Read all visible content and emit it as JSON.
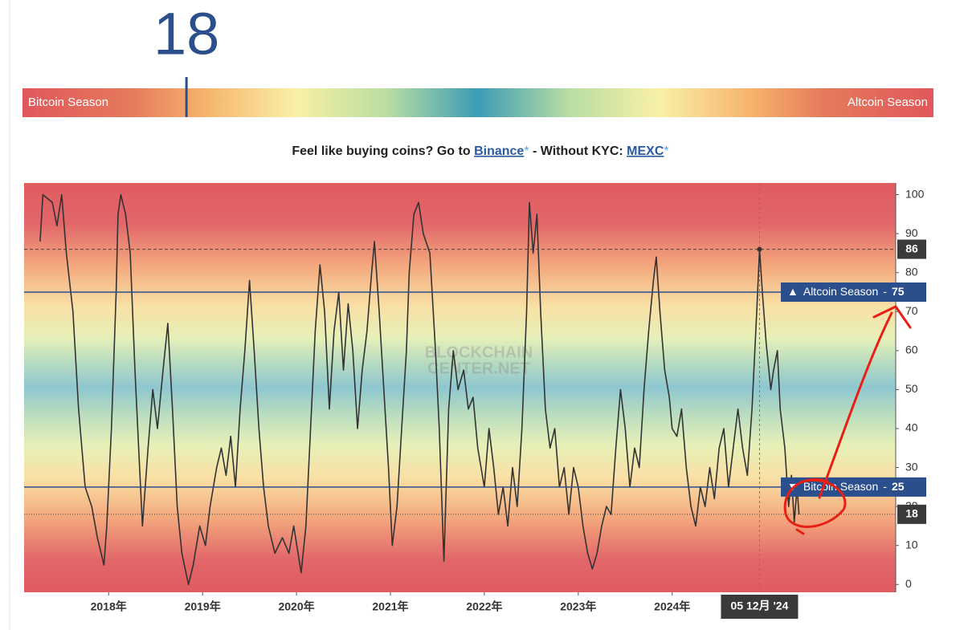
{
  "index": {
    "value": 18,
    "range": [
      0,
      100
    ],
    "left_label": "Bitcoin Season",
    "right_label": "Altcoin Season"
  },
  "promo": {
    "text": "Feel like buying coins? Go to ",
    "link1": "Binance",
    "star1": "*",
    "mid": " - Without KYC: ",
    "link2": "MEXC",
    "star2": "*"
  },
  "chart_data": {
    "type": "line",
    "watermark": [
      "BLOCKCHAIN",
      "CENTER.NET"
    ],
    "color": "#333333",
    "x": [
      2017.27,
      2017.3,
      2017.4,
      2017.45,
      2017.5,
      2017.55,
      2017.62,
      2017.68,
      2017.75,
      2017.82,
      2017.88,
      2017.95,
      2017.98,
      2018.03,
      2018.08,
      2018.1,
      2018.13,
      2018.18,
      2018.23,
      2018.28,
      2018.32,
      2018.36,
      2018.42,
      2018.47,
      2018.52,
      2018.58,
      2018.63,
      2018.68,
      2018.73,
      2018.78,
      2018.85,
      2018.9,
      2018.97,
      2019.03,
      2019.08,
      2019.15,
      2019.2,
      2019.25,
      2019.3,
      2019.35,
      2019.4,
      2019.45,
      2019.5,
      2019.55,
      2019.6,
      2019.65,
      2019.7,
      2019.77,
      2019.85,
      2019.92,
      2019.97,
      2020.05,
      2020.1,
      2020.15,
      2020.2,
      2020.25,
      2020.3,
      2020.35,
      2020.4,
      2020.45,
      2020.5,
      2020.55,
      2020.6,
      2020.65,
      2020.7,
      2020.75,
      2020.8,
      2020.83,
      2020.88,
      2020.93,
      2020.98,
      2021.02,
      2021.07,
      2021.12,
      2021.17,
      2021.2,
      2021.25,
      2021.3,
      2021.35,
      2021.42,
      2021.48,
      2021.52,
      2021.57,
      2021.62,
      2021.67,
      2021.72,
      2021.78,
      2021.83,
      2021.88,
      2021.93,
      2022.0,
      2022.05,
      2022.1,
      2022.15,
      2022.2,
      2022.25,
      2022.3,
      2022.35,
      2022.4,
      2022.45,
      2022.48,
      2022.52,
      2022.56,
      2022.6,
      2022.65,
      2022.7,
      2022.75,
      2022.8,
      2022.85,
      2022.9,
      2022.95,
      2023.0,
      2023.05,
      2023.1,
      2023.15,
      2023.2,
      2023.25,
      2023.3,
      2023.35,
      2023.4,
      2023.45,
      2023.5,
      2023.55,
      2023.6,
      2023.65,
      2023.7,
      2023.75,
      2023.8,
      2023.83,
      2023.87,
      2023.92,
      2023.97,
      2024.0,
      2024.05,
      2024.1,
      2024.15,
      2024.2,
      2024.25,
      2024.3,
      2024.35,
      2024.4,
      2024.45,
      2024.5,
      2024.55,
      2024.6,
      2024.65,
      2024.7,
      2024.75,
      2024.8,
      2024.85,
      2024.9,
      2024.93,
      2024.96,
      2025.0,
      2025.05,
      2025.08,
      2025.12,
      2025.15,
      2025.2,
      2025.24,
      2025.27,
      2025.3,
      2025.33,
      2025.35
    ],
    "values": [
      88,
      100,
      98,
      92,
      100,
      85,
      70,
      45,
      25,
      20,
      12,
      5,
      15,
      40,
      75,
      95,
      100,
      95,
      85,
      55,
      35,
      15,
      35,
      50,
      40,
      55,
      67,
      45,
      20,
      8,
      0,
      5,
      15,
      10,
      20,
      30,
      35,
      28,
      38,
      25,
      45,
      60,
      78,
      60,
      40,
      25,
      15,
      8,
      12,
      8,
      15,
      3,
      15,
      40,
      65,
      82,
      70,
      45,
      65,
      75,
      55,
      72,
      60,
      40,
      55,
      65,
      80,
      88,
      70,
      50,
      30,
      10,
      20,
      40,
      60,
      80,
      95,
      98,
      90,
      85,
      60,
      40,
      6,
      45,
      60,
      50,
      55,
      45,
      48,
      35,
      25,
      40,
      30,
      18,
      25,
      15,
      30,
      20,
      40,
      70,
      98,
      85,
      95,
      70,
      45,
      35,
      40,
      25,
      30,
      18,
      30,
      25,
      15,
      8,
      4,
      8,
      15,
      20,
      18,
      35,
      50,
      40,
      25,
      35,
      30,
      50,
      65,
      78,
      84,
      70,
      55,
      48,
      40,
      38,
      45,
      30,
      20,
      15,
      25,
      20,
      30,
      22,
      35,
      40,
      25,
      35,
      45,
      35,
      28,
      45,
      70,
      86,
      75,
      62,
      50,
      55,
      60,
      45,
      35,
      20,
      28,
      16,
      25,
      18
    ],
    "xlim": [
      2017.1,
      2026.38
    ],
    "xticks": [
      {
        "value": 2018,
        "label": "2018年"
      },
      {
        "value": 2019,
        "label": "2019年"
      },
      {
        "value": 2020,
        "label": "2020年"
      },
      {
        "value": 2021,
        "label": "2021年"
      },
      {
        "value": 2022,
        "label": "2022年"
      },
      {
        "value": 2023,
        "label": "2023年"
      },
      {
        "value": 2024,
        "label": "2024年"
      }
    ],
    "ylim": [
      -2,
      103
    ],
    "yticks": [
      0,
      10,
      20,
      30,
      40,
      50,
      60,
      70,
      80,
      90,
      100
    ],
    "separator": "-",
    "thresholds": [
      {
        "marker": "▲",
        "label": "Altcoin Season",
        "value": 75
      },
      {
        "marker": "▼",
        "label": "Bitcoin Season",
        "value": 25
      }
    ],
    "reference_lines": [
      {
        "value": 86,
        "style": "dashed"
      },
      {
        "value": 18,
        "style": "dotted"
      }
    ],
    "crosshair": {
      "x": 2024.93,
      "label": "05 12月 '24"
    }
  }
}
